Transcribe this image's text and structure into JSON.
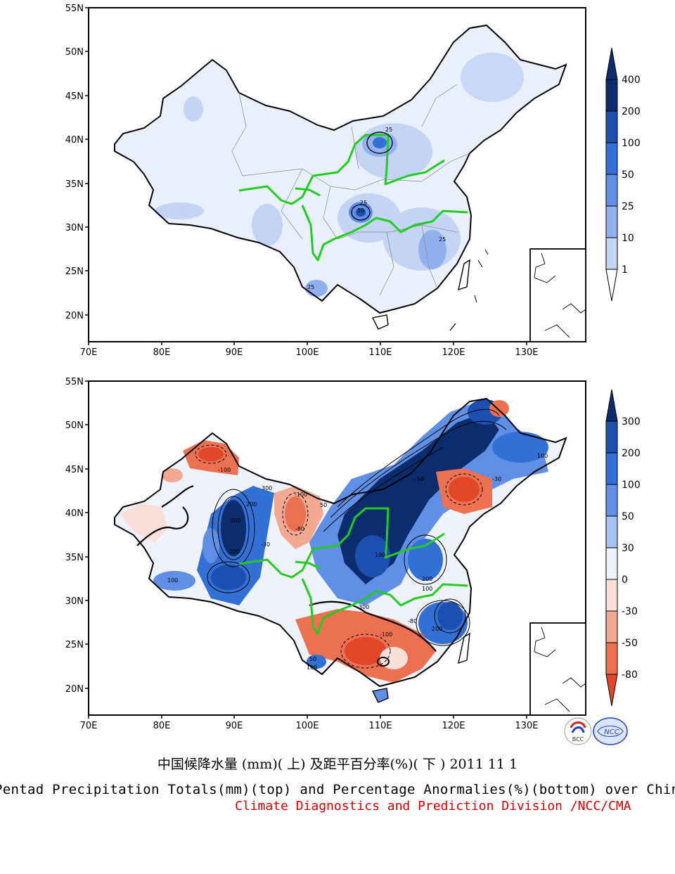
{
  "title_cn": "中国候降水量 (mm)( 上) 及距平百分率(%)( 下 ) 2011 11 1",
  "title_en": "Pentad Precipitation Totals(mm)(top) and Percentage Anormalies(%)(bottom) over China",
  "credit": "Climate Diagnostics and Prediction Division /NCC/CMA",
  "logos": {
    "left": "BCC",
    "right": "NCC"
  },
  "panels": {
    "top": {
      "x_ticks": [
        "70E",
        "80E",
        "90E",
        "100E",
        "110E",
        "120E",
        "130E"
      ],
      "y_ticks": [
        "55N",
        "50N",
        "45N",
        "40N",
        "35N",
        "30N",
        "25N",
        "20N"
      ],
      "colorbar": {
        "labels": [
          "400",
          "200",
          "100",
          "50",
          "25",
          "10",
          "1"
        ],
        "colors": [
          "#0b2d6e",
          "#1c4fb0",
          "#3370d6",
          "#5f90e6",
          "#90b1ee",
          "#c3d4f5",
          "#ffffff"
        ],
        "top_arrow_color": "#0b2d6e"
      },
      "contour_labels": [
        "25",
        "50",
        "25",
        "25",
        "25"
      ]
    },
    "bottom": {
      "x_ticks": [
        "70E",
        "80E",
        "90E",
        "100E",
        "110E",
        "120E",
        "130E"
      ],
      "y_ticks": [
        "55N",
        "50N",
        "45N",
        "40N",
        "35N",
        "30N",
        "25N",
        "20N"
      ],
      "colorbar": {
        "labels": [
          "300",
          "200",
          "100",
          "50",
          "30",
          "0",
          "-30",
          "-50",
          "-80"
        ],
        "colors": [
          "#0b2d6e",
          "#1c4fb0",
          "#3370d6",
          "#5f90e6",
          "#a7c2f0",
          "#eef2fb",
          "#fbe0da",
          "#f3a892",
          "#ec7150",
          "#e2472a"
        ],
        "bottom_arrow_color": "#e2472a"
      },
      "contour_labels": [
        "300",
        "200",
        "100",
        "100",
        "-100",
        "300",
        "200",
        "-100",
        "-80",
        "-30",
        "50",
        "100",
        "200",
        "300",
        "-50",
        "-80",
        "100",
        "50",
        "-30",
        "-100",
        "200",
        "100"
      ]
    }
  }
}
